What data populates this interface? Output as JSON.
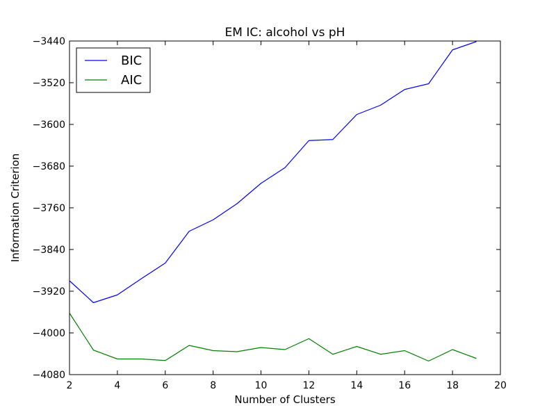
{
  "chart_data": {
    "type": "line",
    "title": "EM IC: alcohol vs pH",
    "xlabel": "Number of Clusters",
    "ylabel": "Information Criterion",
    "xlim": [
      2,
      20
    ],
    "ylim": [
      -4080,
      -3440
    ],
    "xticks": [
      2,
      4,
      6,
      8,
      10,
      12,
      14,
      16,
      18,
      20
    ],
    "yticks": [
      -4080,
      -4000,
      -3920,
      -3840,
      -3760,
      -3680,
      -3600,
      -3520,
      -3440
    ],
    "xtick_labels": [
      "2",
      "4",
      "6",
      "8",
      "10",
      "12",
      "14",
      "16",
      "18",
      "20"
    ],
    "ytick_labels": [
      "−4080",
      "−4000",
      "−3920",
      "−3840",
      "−3760",
      "−3680",
      "−3600",
      "−3520",
      "−3440"
    ],
    "grid": false,
    "legend_position": "top-left",
    "x": [
      2,
      3,
      4,
      5,
      6,
      7,
      8,
      9,
      10,
      11,
      12,
      13,
      14,
      15,
      16,
      17,
      18,
      19
    ],
    "series": [
      {
        "name": "BIC",
        "color": "#0000ff",
        "values": [
          -3900,
          -3942,
          -3927,
          -3896,
          -3866,
          -3805,
          -3783,
          -3752,
          -3713,
          -3683,
          -3631,
          -3629,
          -3581,
          -3563,
          -3533,
          -3522,
          -3457,
          -3441
        ]
      },
      {
        "name": "AIC",
        "color": "#008000",
        "values": [
          -3962,
          -4033,
          -4050,
          -4050,
          -4053,
          -4024,
          -4034,
          -4036,
          -4028,
          -4032,
          -4011,
          -4041,
          -4026,
          -4041,
          -4034,
          -4054,
          -4032,
          -4049
        ]
      }
    ]
  }
}
